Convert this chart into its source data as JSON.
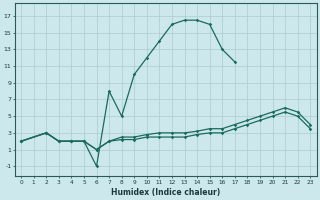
{
  "title": "",
  "xlabel": "Humidex (Indice chaleur)",
  "xlim": [
    -0.5,
    23.5
  ],
  "ylim": [
    -2.2,
    18.5
  ],
  "xticks": [
    0,
    1,
    2,
    3,
    4,
    5,
    6,
    7,
    8,
    9,
    10,
    11,
    12,
    13,
    14,
    15,
    16,
    17,
    18,
    19,
    20,
    21,
    22,
    23
  ],
  "yticks": [
    -1,
    1,
    3,
    5,
    7,
    9,
    11,
    13,
    15,
    17
  ],
  "bg_color": "#cce8ec",
  "grid_color": "#aacccc",
  "line_color": "#1a6b5e",
  "main_x": [
    0,
    2,
    3,
    4,
    5,
    6,
    7,
    8,
    9,
    10,
    11,
    12,
    13,
    14,
    15,
    16,
    17
  ],
  "main_y": [
    2,
    3,
    2,
    2,
    2,
    -1,
    8,
    5,
    10,
    12,
    14,
    16,
    16.5,
    16.5,
    16,
    13,
    11.5
  ],
  "flat1_x": [
    0,
    2,
    3,
    4,
    5,
    6,
    7,
    8,
    9,
    10,
    11,
    12,
    13,
    14,
    15,
    16,
    17,
    18,
    19,
    20,
    21,
    22,
    23
  ],
  "flat1_y": [
    2,
    3,
    2,
    2,
    2,
    1,
    2,
    2.5,
    2.5,
    2.8,
    3,
    3,
    3,
    3.2,
    3.5,
    3.5,
    4,
    4.5,
    5,
    5.5,
    6,
    5.5,
    4
  ],
  "flat2_x": [
    0,
    2,
    3,
    4,
    5,
    6,
    7,
    8,
    9,
    10,
    11,
    12,
    13,
    14,
    15,
    16,
    17,
    18,
    19,
    20,
    21,
    22,
    23
  ],
  "flat2_y": [
    2,
    3,
    2,
    2,
    2,
    1,
    2,
    2.2,
    2.2,
    2.5,
    2.5,
    2.5,
    2.5,
    2.8,
    3,
    3,
    3.5,
    4,
    4.5,
    5,
    5.5,
    5,
    3.5
  ]
}
